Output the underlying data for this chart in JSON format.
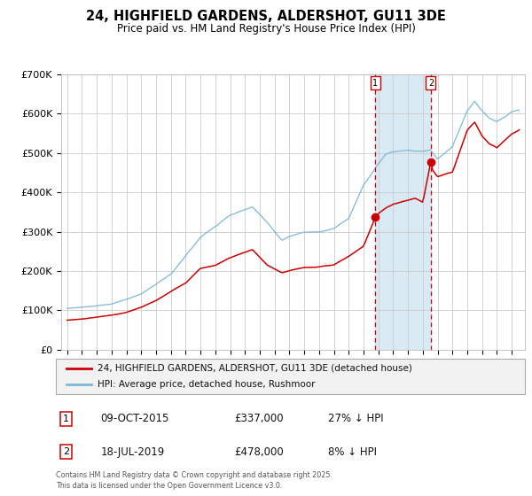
{
  "title": "24, HIGHFIELD GARDENS, ALDERSHOT, GU11 3DE",
  "subtitle": "Price paid vs. HM Land Registry's House Price Index (HPI)",
  "ylim": [
    0,
    700000
  ],
  "yticks": [
    0,
    100000,
    200000,
    300000,
    400000,
    500000,
    600000,
    700000
  ],
  "ytick_labels": [
    "£0",
    "£100K",
    "£200K",
    "£300K",
    "£400K",
    "£500K",
    "£600K",
    "£700K"
  ],
  "hpi_color": "#7db8d8",
  "property_color": "#cc0000",
  "grid_color": "#cccccc",
  "background_color": "#ffffff",
  "sale1_date": 2015.78,
  "sale1_price": 337000,
  "sale2_date": 2019.54,
  "sale2_price": 478000,
  "shade_color": "#daeaf5",
  "vline_color": "#cc0000",
  "legend_property": "24, HIGHFIELD GARDENS, ALDERSHOT, GU11 3DE (detached house)",
  "legend_hpi": "HPI: Average price, detached house, Rushmoor",
  "footnote1": "Contains HM Land Registry data © Crown copyright and database right 2025.",
  "footnote2": "This data is licensed under the Open Government Licence v3.0.",
  "table_rows": [
    {
      "num": "1",
      "date": "09-OCT-2015",
      "price": "£337,000",
      "hpi": "27% ↓ HPI"
    },
    {
      "num": "2",
      "date": "18-JUL-2019",
      "price": "£478,000",
      "hpi": "8% ↓ HPI"
    }
  ],
  "hpi_key_t": [
    1995,
    1996,
    1998,
    2000,
    2002,
    2004,
    2006,
    2007.5,
    2008.5,
    2009.5,
    2010,
    2011,
    2012,
    2013,
    2014,
    2015,
    2015.8,
    2016.5,
    2017,
    2018,
    2019,
    2019.5,
    2020,
    2021,
    2022,
    2022.5,
    2023,
    2023.5,
    2024,
    2025,
    2025.5
  ],
  "hpi_key_v": [
    105000,
    108000,
    115000,
    140000,
    190000,
    285000,
    340000,
    360000,
    320000,
    275000,
    285000,
    295000,
    295000,
    305000,
    330000,
    415000,
    460000,
    495000,
    500000,
    505000,
    500000,
    505000,
    480000,
    510000,
    600000,
    625000,
    600000,
    580000,
    570000,
    595000,
    600000
  ],
  "prop_key_t": [
    1995,
    1996,
    1997,
    1998,
    1999,
    2000,
    2001,
    2002,
    2003,
    2004,
    2005,
    2006,
    2007.5,
    2008.5,
    2009.5,
    2010,
    2011,
    2012,
    2013,
    2014,
    2015,
    2015.8,
    2016,
    2016.5,
    2017,
    2018,
    2018.5,
    2019,
    2019.54,
    2019.6,
    2020,
    2021,
    2022,
    2022.5,
    2023,
    2023.5,
    2024,
    2025,
    2025.5
  ],
  "prop_key_v": [
    75000,
    78000,
    83000,
    88000,
    95000,
    108000,
    125000,
    148000,
    170000,
    208000,
    215000,
    235000,
    255000,
    215000,
    195000,
    200000,
    208000,
    210000,
    215000,
    237000,
    263000,
    337000,
    345000,
    360000,
    370000,
    380000,
    385000,
    375000,
    478000,
    460000,
    440000,
    450000,
    555000,
    575000,
    540000,
    520000,
    510000,
    545000,
    555000
  ]
}
